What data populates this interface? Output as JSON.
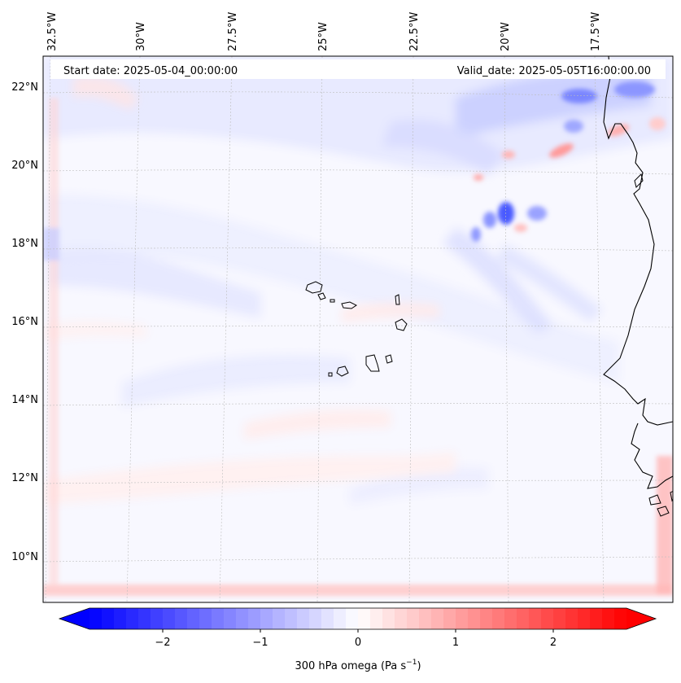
{
  "header": {
    "start_date": "Start date: 2025-05-04_00:00:00",
    "valid_date": "Valid_date: 2025-05-05T16:00:00.00"
  },
  "longitude_labels": [
    "32.5°W",
    "30°W",
    "27.5°W",
    "25°W",
    "22.5°W",
    "20°W",
    "17.5°W"
  ],
  "latitude_labels": [
    "22°N",
    "20°N",
    "18°N",
    "16°N",
    "14°N",
    "12°N",
    "10°N"
  ],
  "colorbar": {
    "label": "300 hPa omega (Pa s",
    "label_superscript": "−1",
    "label_suffix": ")",
    "tick_labels": [
      "−2",
      "−1",
      "0",
      "1",
      "2"
    ],
    "ticks": [
      -2,
      -1,
      0,
      1,
      2
    ],
    "range": [
      -2.75,
      2.75
    ],
    "colors": {
      "low": "#0000ff",
      "mid": "#ffffff",
      "high": "#ff0000"
    }
  }
}
